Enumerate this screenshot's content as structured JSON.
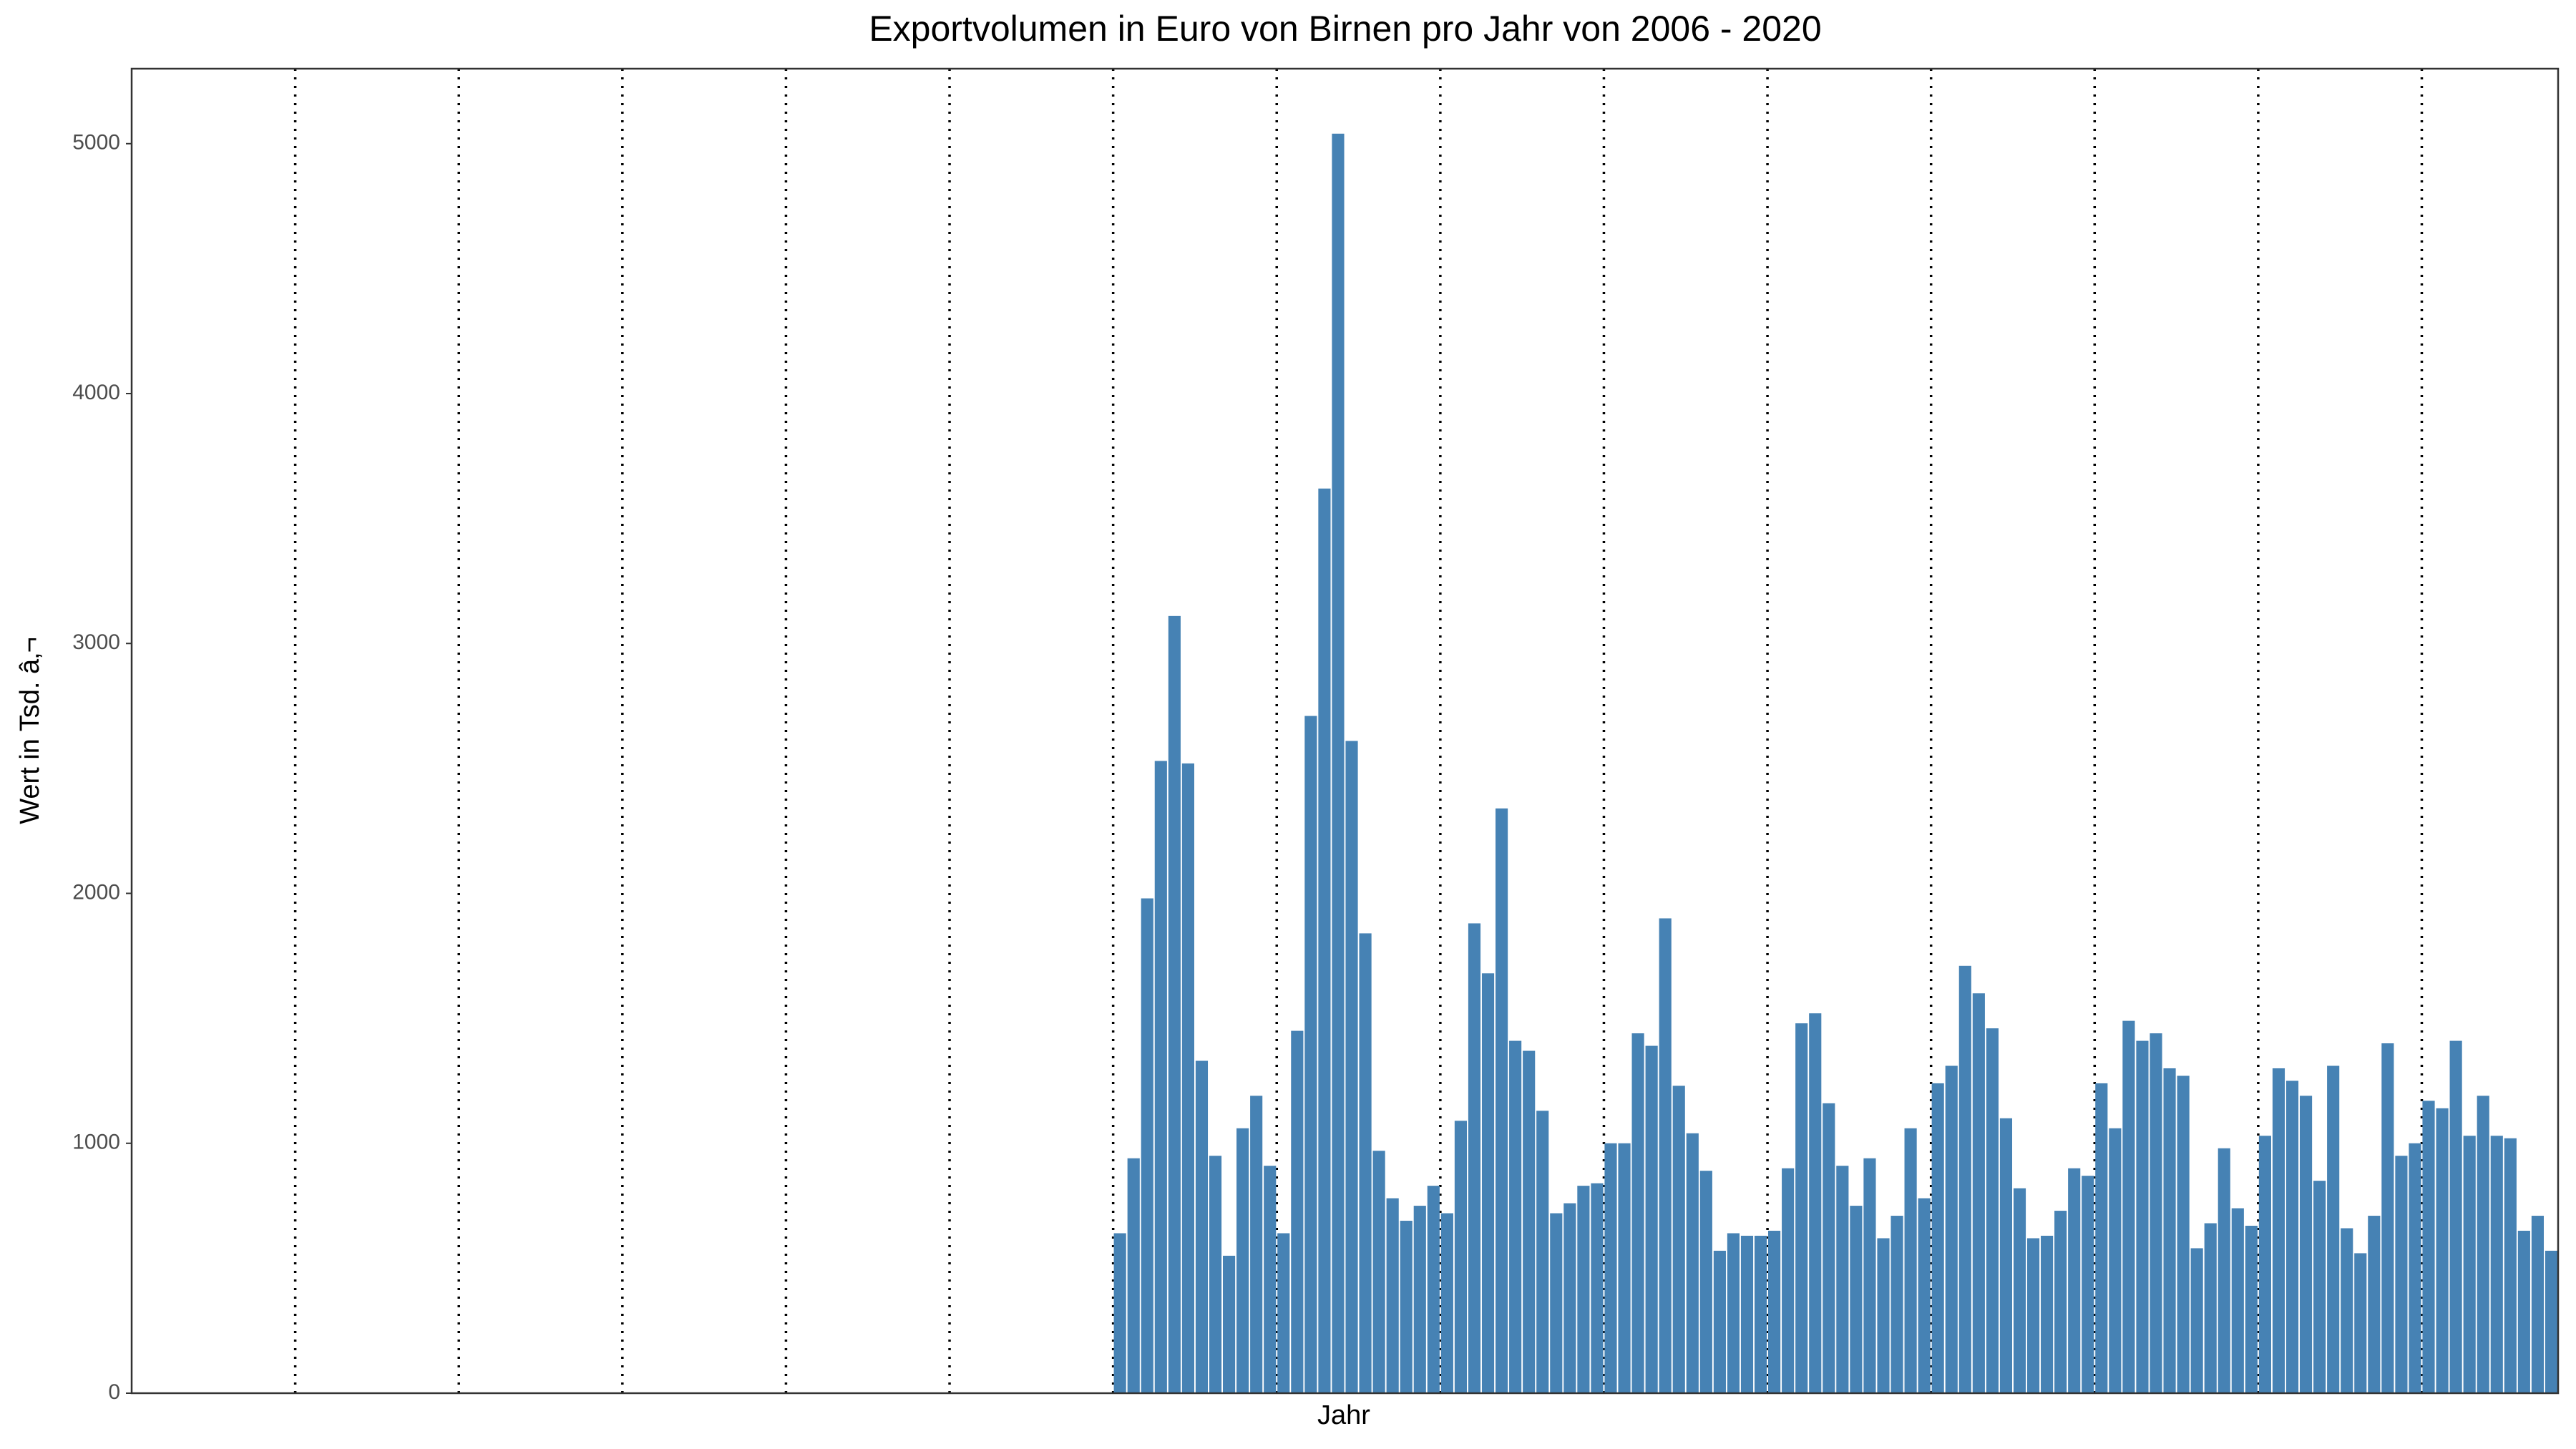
{
  "chart_data": {
    "type": "bar",
    "title": "Exportvolumen in Euro von Birnen pro Jahr von 2006 - 2020",
    "x_label": "Jahr",
    "y_label": "Wert in Tsd. â‚¬",
    "color": "#4682b4",
    "ylim": [
      0,
      5300
    ],
    "yticks": [
      0,
      1000,
      2000,
      3000,
      4000,
      5000
    ],
    "categories": [
      null,
      null,
      null,
      null,
      null,
      null,
      null,
      null,
      null,
      null,
      null,
      null,
      null,
      null,
      null,
      null,
      null,
      null,
      null,
      null,
      null,
      null,
      null,
      null,
      null,
      null,
      null,
      null,
      null,
      null,
      null,
      null,
      null,
      null,
      null,
      null,
      null,
      null,
      null,
      null,
      null,
      null,
      null,
      null,
      null,
      null,
      null,
      null,
      null,
      null,
      null,
      null,
      null,
      null,
      null,
      null,
      null,
      null,
      null,
      null,
      null,
      null,
      null,
      null,
      null,
      null,
      null,
      null,
      null,
      null,
      null,
      null,
      null,
      null,
      null,
      null,
      null,
      null,
      null,
      null,
      null,
      null,
      null,
      null,
      null,
      null,
      null,
      null,
      null,
      null,
      null,
      null,
      null,
      null,
      null,
      null,
      null,
      null,
      null,
      null,
      null,
      null,
      null,
      null,
      null,
      null,
      null,
      null,
      null,
      null,
      null,
      null,
      null,
      null,
      null,
      null,
      null,
      null,
      null,
      null,
      null,
      null,
      null,
      null,
      null,
      null,
      null,
      null,
      null,
      null,
      null,
      null,
      null,
      null,
      null,
      null,
      null,
      null,
      null,
      null,
      null,
      null,
      null,
      null,
      null,
      null,
      null,
      null,
      null,
      null,
      null,
      null,
      null,
      null,
      null,
      null,
      null,
      null,
      null,
      null,
      null,
      null,
      null,
      null,
      null,
      null,
      null,
      null,
      null,
      null,
      null,
      null,
      null,
      null,
      null,
      null,
      null,
      null
    ],
    "values": [
      null,
      null,
      null,
      null,
      null,
      null,
      null,
      null,
      null,
      null,
      null,
      null,
      null,
      null,
      null,
      null,
      null,
      null,
      null,
      null,
      null,
      null,
      null,
      null,
      null,
      null,
      null,
      null,
      null,
      null,
      null,
      null,
      null,
      null,
      null,
      null,
      null,
      null,
      null,
      null,
      null,
      null,
      null,
      null,
      null,
      null,
      null,
      null,
      null,
      null,
      null,
      null,
      null,
      null,
      null,
      null,
      null,
      null,
      null,
      null,
      null,
      null,
      null,
      null,
      null,
      null,
      null,
      null,
      null,
      null,
      null,
      null,
      640,
      940,
      1980,
      2530,
      3110,
      2520,
      1330,
      950,
      550,
      1060,
      1190,
      910,
      640,
      1450,
      2710,
      3620,
      5040,
      2610,
      1840,
      970,
      780,
      690,
      750,
      830,
      720,
      1090,
      1880,
      1680,
      2340,
      1410,
      1370,
      1130,
      720,
      760,
      830,
      840,
      1000,
      1000,
      1440,
      1390,
      1900,
      1230,
      1040,
      890,
      570,
      640,
      630,
      630,
      650,
      900,
      1480,
      1520,
      1160,
      910,
      750,
      940,
      620,
      710,
      1060,
      780,
      1240,
      1310,
      1710,
      1600,
      1460,
      1100,
      820,
      620,
      630,
      730,
      900,
      870,
      1240,
      1060,
      1490,
      1410,
      1440,
      1300,
      1270,
      580,
      680,
      980,
      740,
      670,
      1030,
      1300,
      1250,
      1190,
      850,
      1310,
      660,
      560,
      710,
      1400,
      950,
      1000,
      1170,
      1140,
      1410,
      1030,
      1190,
      1030,
      1020,
      650,
      710,
      570
    ]
  }
}
